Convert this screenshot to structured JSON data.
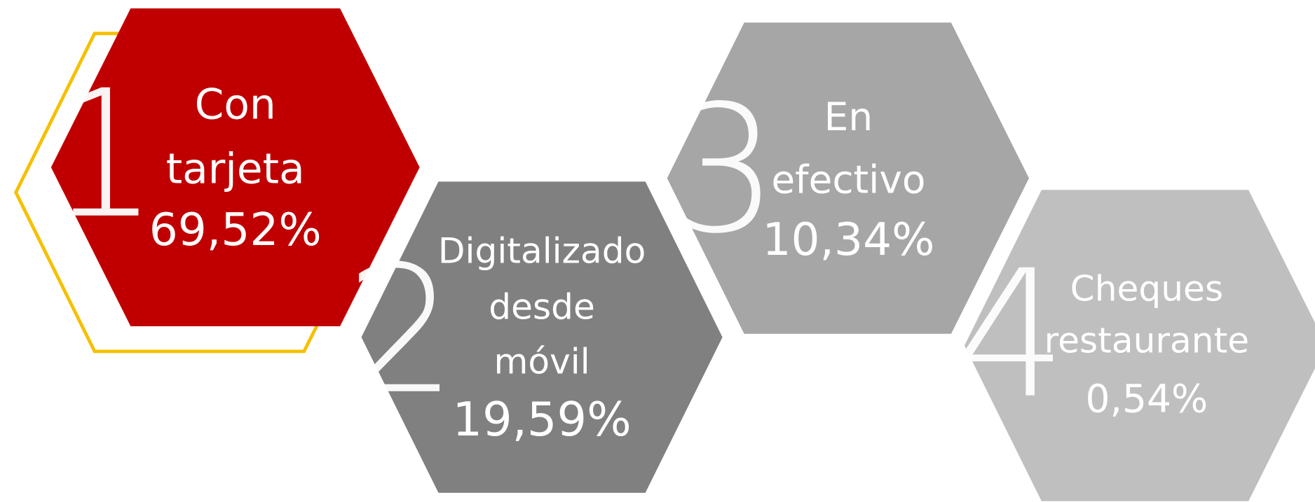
{
  "items": [
    {
      "rank": "1",
      "lines": [
        "Con",
        "tarjeta"
      ],
      "value": "69,52%"
    },
    {
      "rank": "2",
      "lines": [
        "Digitalizado",
        "desde",
        "móvil"
      ],
      "value": "19,59%"
    },
    {
      "rank": "3",
      "lines": [
        "En",
        "efectivo"
      ],
      "value": "10,34%"
    },
    {
      "rank": "4",
      "lines": [
        "Cheques",
        "restaurante"
      ],
      "value": "0,54%"
    }
  ]
}
